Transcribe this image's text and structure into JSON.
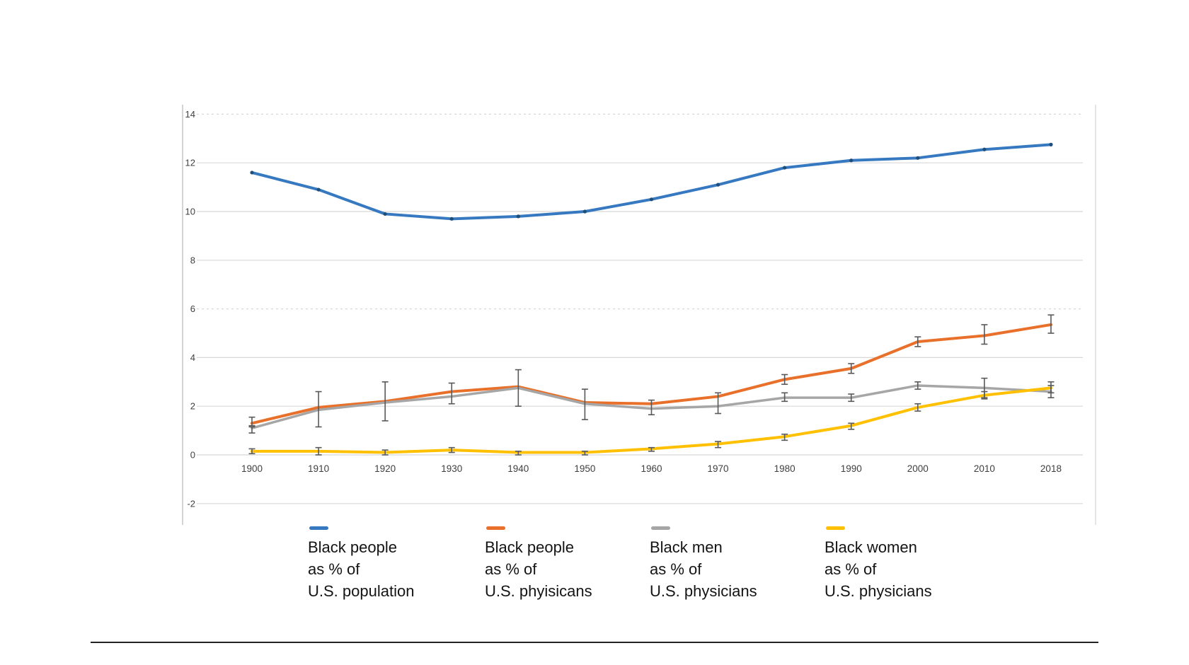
{
  "chart_data": {
    "type": "line",
    "title": "",
    "xlabel": "",
    "ylabel": "",
    "x_labels": [
      "1900",
      "1910",
      "1920",
      "1930",
      "1940",
      "1950",
      "1960",
      "1970",
      "1980",
      "1990",
      "2000",
      "2010",
      "2018"
    ],
    "y_ticks": [
      14,
      12,
      10,
      8,
      6,
      4,
      2,
      0,
      -2
    ],
    "ylim": [
      -3.1,
      14.6
    ],
    "grid": true,
    "dashed_gridlines": [
      14,
      6
    ],
    "legend_position": "bottom",
    "error_bar_color": "#595959",
    "series": [
      {
        "id": "population",
        "name": "Black people as % of U.S. population",
        "color": "#3679C0",
        "marker_color": "#1F4E79",
        "line_width": 4,
        "values": [
          11.6,
          10.9,
          9.9,
          9.7,
          9.8,
          10.0,
          10.5,
          11.1,
          11.8,
          12.1,
          12.2,
          12.55,
          12.75
        ]
      },
      {
        "id": "black-physicians",
        "name": "Black people as % of U.S. phyisicans",
        "color": "#E8702A",
        "line_width": 4,
        "values": [
          1.3,
          1.95,
          2.2,
          2.6,
          2.8,
          2.15,
          2.1,
          2.4,
          3.1,
          3.55,
          4.65,
          4.9,
          5.35
        ],
        "error_low": [
          1.2,
          null,
          null,
          null,
          null,
          null,
          null,
          null,
          2.9,
          3.35,
          4.45,
          4.55,
          5.0
        ],
        "error_high": [
          1.55,
          null,
          null,
          null,
          null,
          null,
          null,
          null,
          3.3,
          3.75,
          4.85,
          5.35,
          5.75
        ]
      },
      {
        "id": "black-men-physicians",
        "name": "Black men as % of U.S. physicians",
        "color": "#A6A6A6",
        "line_width": 3.5,
        "values": [
          1.1,
          1.85,
          2.15,
          2.4,
          2.75,
          2.1,
          1.9,
          2.0,
          2.35,
          2.35,
          2.85,
          2.75,
          2.6
        ],
        "error_low": [
          0.9,
          1.15,
          1.4,
          2.1,
          2.0,
          1.45,
          1.65,
          1.7,
          2.2,
          2.2,
          2.7,
          2.35,
          2.35
        ],
        "error_high": [
          1.15,
          2.6,
          3.0,
          2.95,
          3.5,
          2.7,
          2.25,
          2.55,
          2.55,
          2.5,
          3.0,
          3.15,
          2.85
        ]
      },
      {
        "id": "black-women-physicians",
        "name": "Black women as % of U.S. physicians",
        "color": "#FFC000",
        "line_width": 4,
        "values": [
          0.15,
          0.15,
          0.1,
          0.2,
          0.1,
          0.1,
          0.25,
          0.45,
          0.75,
          1.2,
          1.95,
          2.45,
          2.75
        ],
        "error_low": [
          0.05,
          0.0,
          0.0,
          0.1,
          0.0,
          0.0,
          0.15,
          0.3,
          0.6,
          1.05,
          1.8,
          2.3,
          2.55
        ],
        "error_high": [
          0.25,
          0.3,
          0.2,
          0.3,
          0.15,
          0.15,
          0.3,
          0.55,
          0.85,
          1.3,
          2.1,
          2.6,
          3.0
        ]
      }
    ]
  },
  "legend": {
    "items": [
      {
        "id": "population",
        "color": "#3679C0",
        "label": "Black people\nas % of\nU.S. population"
      },
      {
        "id": "black-physicians",
        "color": "#E8702A",
        "label": "Black people\nas % of\nU.S. phyisicans"
      },
      {
        "id": "black-men-physicians",
        "color": "#A6A6A6",
        "label": "Black men\nas % of\nU.S. physicians"
      },
      {
        "id": "black-women-physicians",
        "color": "#FFC000",
        "label": "Black women\nas % of\nU.S. physicians"
      }
    ]
  }
}
